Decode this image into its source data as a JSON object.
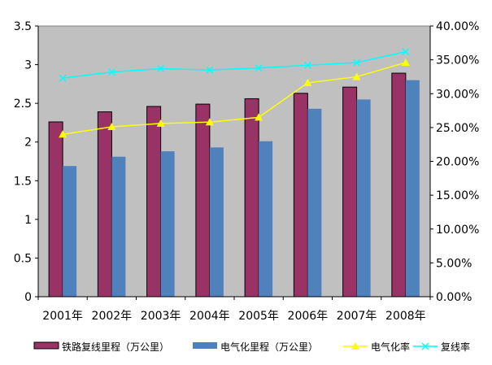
{
  "chart_data": {
    "type": "bar",
    "categories": [
      "2001年",
      "2002年",
      "2003年",
      "2004年",
      "2005年",
      "2006年",
      "2007年",
      "2008年"
    ],
    "series": [
      {
        "name": "铁路复线里程（万公里）",
        "type": "bar",
        "axis": "left",
        "color": "#993366",
        "values": [
          2.26,
          2.39,
          2.46,
          2.49,
          2.56,
          2.63,
          2.71,
          2.89
        ]
      },
      {
        "name": "电气化里程（万公里）",
        "type": "bar",
        "axis": "left",
        "color": "#4f81bd",
        "values": [
          1.69,
          1.81,
          1.88,
          1.93,
          2.01,
          2.43,
          2.55,
          2.8
        ]
      },
      {
        "name": "电气化率",
        "type": "line",
        "axis": "right",
        "color": "#ffff00",
        "marker": "triangle",
        "values": [
          24.0,
          25.1,
          25.6,
          25.8,
          26.5,
          31.6,
          32.5,
          34.6
        ]
      },
      {
        "name": "复线率",
        "type": "line",
        "axis": "right",
        "color": "#00ffff",
        "marker": "x",
        "values": [
          32.3,
          33.2,
          33.7,
          33.5,
          33.8,
          34.2,
          34.6,
          36.2
        ]
      }
    ],
    "yleft": {
      "min": 0,
      "max": 3.5,
      "step": 0.5,
      "ticks": [
        "0",
        "0.5",
        "1",
        "1.5",
        "2",
        "2.5",
        "3",
        "3.5"
      ]
    },
    "yright": {
      "min": 0,
      "max": 40,
      "step": 5,
      "ticks": [
        "0.00%",
        "5.00%",
        "10.00%",
        "15.00%",
        "20.00%",
        "25.00%",
        "30.00%",
        "35.00%",
        "40.00%"
      ]
    },
    "plot_background": "#c0c0c0",
    "grid": false,
    "legend_position": "bottom"
  }
}
